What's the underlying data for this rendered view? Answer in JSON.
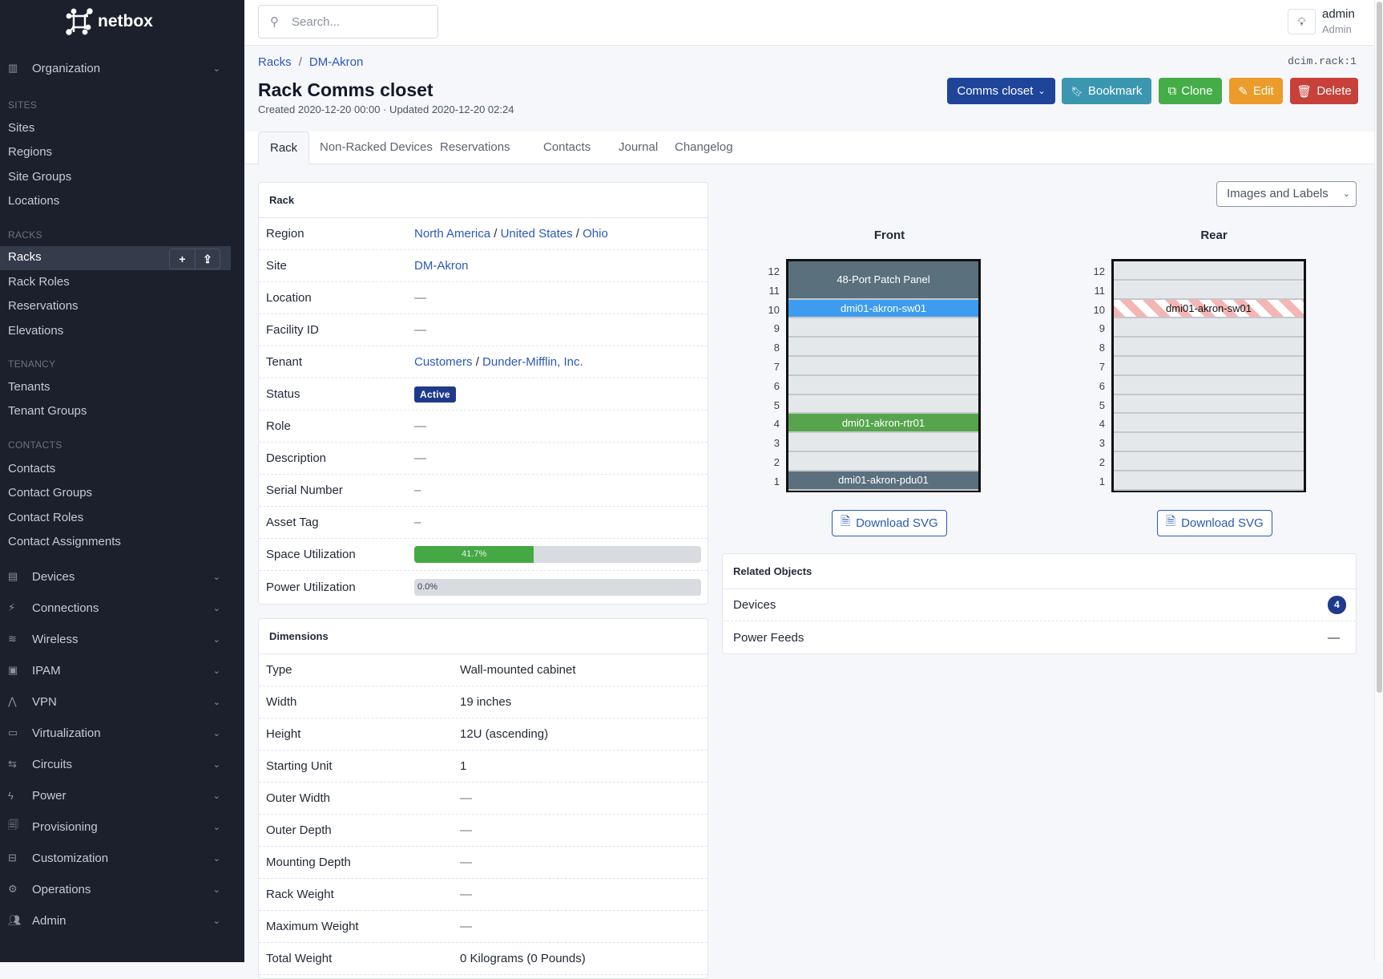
{
  "app": {
    "logo_text": "netbox"
  },
  "sidebar": {
    "organization": "Organization",
    "sections": [
      {
        "header": "SITES",
        "items": [
          "Sites",
          "Regions",
          "Site Groups",
          "Locations"
        ]
      },
      {
        "header": "RACKS",
        "items": [
          "Racks",
          "Rack Roles",
          "Reservations",
          "Elevations"
        ]
      },
      {
        "header": "TENANCY",
        "items": [
          "Tenants",
          "Tenant Groups"
        ]
      },
      {
        "header": "CONTACTS",
        "items": [
          "Contacts",
          "Contact Groups",
          "Contact Roles",
          "Contact Assignments"
        ]
      }
    ],
    "active_item": "Racks",
    "menus": [
      {
        "label": "Devices",
        "icon": "server-icon"
      },
      {
        "label": "Connections",
        "icon": "plug-icon"
      },
      {
        "label": "Wireless",
        "icon": "wifi-icon"
      },
      {
        "label": "IPAM",
        "icon": "counter-icon"
      },
      {
        "label": "VPN",
        "icon": "tunnel-icon"
      },
      {
        "label": "Virtualization",
        "icon": "monitor-icon"
      },
      {
        "label": "Circuits",
        "icon": "transit-icon"
      },
      {
        "label": "Power",
        "icon": "flash-icon"
      },
      {
        "label": "Provisioning",
        "icon": "file-icon"
      },
      {
        "label": "Customization",
        "icon": "toolbox-icon"
      },
      {
        "label": "Operations",
        "icon": "cogs-icon"
      },
      {
        "label": "Admin",
        "icon": "users-icon"
      }
    ]
  },
  "header": {
    "search_placeholder": "Search...",
    "user_name": "admin",
    "user_role": "Admin"
  },
  "breadcrumb": [
    "Racks",
    "DM-Akron"
  ],
  "object_id": "dcim.rack:1",
  "page": {
    "title": "Rack Comms closet",
    "meta": "Created 2020-12-20 00:00 · Updated 2020-12-20 02:24"
  },
  "actions": {
    "rack_select": "Comms closet",
    "bookmark": "Bookmark",
    "clone": "Clone",
    "edit": "Edit",
    "delete": "Delete"
  },
  "colors": {
    "primary": "#1e459a",
    "bookmark": "#3b97b0",
    "clone": "#45ad48",
    "edit": "#ec9c2a",
    "delete": "#c8403a"
  },
  "tabs": [
    "Rack",
    "Non-Racked Devices",
    "Reservations",
    "Contacts",
    "Journal",
    "Changelog"
  ],
  "rack_card": {
    "title": "Rack",
    "region": [
      "North America",
      "United States",
      "Ohio"
    ],
    "rows": [
      {
        "label": "Region"
      },
      {
        "label": "Site",
        "value": "DM-Akron"
      },
      {
        "label": "Location",
        "value": "—"
      },
      {
        "label": "Facility ID",
        "value": "—"
      },
      {
        "label": "Tenant",
        "value": [
          "Customers",
          "Dunder-Mifflin, Inc."
        ]
      },
      {
        "label": "Status",
        "value": "Active"
      },
      {
        "label": "Role",
        "value": "—"
      },
      {
        "label": "Description",
        "value": "—"
      },
      {
        "label": "Serial Number",
        "value": "–"
      },
      {
        "label": "Asset Tag",
        "value": "–"
      },
      {
        "label": "Space Utilization",
        "value": "41.7%",
        "percent": 41.7
      },
      {
        "label": "Power Utilization",
        "value": "0.0%",
        "percent": 0
      }
    ]
  },
  "dimensions": {
    "title": "Dimensions",
    "rows": [
      {
        "label": "Type",
        "value": "Wall-mounted cabinet"
      },
      {
        "label": "Width",
        "value": "19 inches"
      },
      {
        "label": "Height",
        "value": "12U (ascending)"
      },
      {
        "label": "Starting Unit",
        "value": "1"
      },
      {
        "label": "Outer Width",
        "value": "—"
      },
      {
        "label": "Outer Depth",
        "value": "—"
      },
      {
        "label": "Mounting Depth",
        "value": "—"
      },
      {
        "label": "Rack Weight",
        "value": "—"
      },
      {
        "label": "Maximum Weight",
        "value": "—"
      },
      {
        "label": "Total Weight",
        "value": "0 Kilograms (0 Pounds)"
      }
    ]
  },
  "elevation": {
    "view_select": "Images and Labels",
    "units": 12,
    "front": {
      "label": "Front",
      "devices": [
        {
          "name": "48-Port Patch Panel",
          "position": 11,
          "height": 2,
          "color": "#5b707d"
        },
        {
          "name": "dmi01-akron-sw01",
          "position": 10,
          "height": 1,
          "color": "#3d9cf0"
        },
        {
          "name": "dmi01-akron-rtr01",
          "position": 4,
          "height": 1,
          "color": "#56a54c"
        },
        {
          "name": "dmi01-akron-pdu01",
          "position": 1,
          "height": 1,
          "color": "#5b707d"
        }
      ]
    },
    "rear": {
      "label": "Rear",
      "devices": [
        {
          "name": "dmi01-akron-sw01",
          "position": 10,
          "height": 1,
          "color": "striped"
        }
      ]
    },
    "download_label": "Download SVG"
  },
  "related": {
    "title": "Related Objects",
    "rows": [
      {
        "label": "Devices",
        "count": "4"
      },
      {
        "label": "Power Feeds",
        "count": "—"
      }
    ]
  }
}
